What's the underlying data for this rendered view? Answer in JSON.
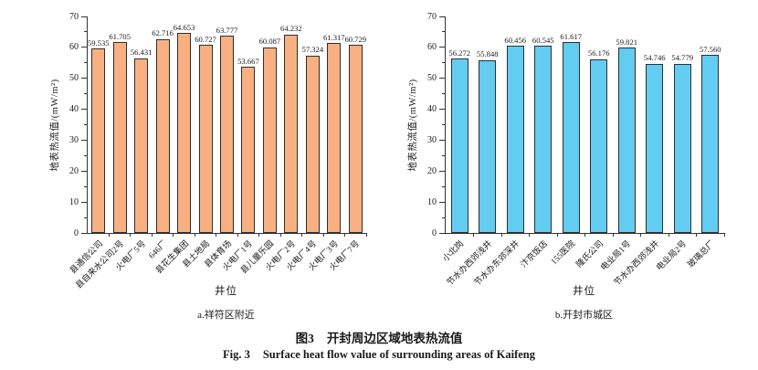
{
  "figure": {
    "caption_zh_label": "图3",
    "caption_zh_text": "开封周边区域地表热流值",
    "caption_en_label": "Fig. 3",
    "caption_en_text": "Surface heat flow value of surrounding areas of Kaifeng"
  },
  "chart_data": [
    {
      "type": "bar",
      "panel_label": "a.祥符区附近",
      "xlabel": "井位",
      "ylabel": "地表热流值/(mW/m²)",
      "ylim": [
        0,
        70
      ],
      "ytick_step": 10,
      "ytick_minor_step": 5,
      "grid": false,
      "legend": null,
      "bar_color": "#F8B083",
      "bar_border_color": "#2e2e2e",
      "categories": [
        "县通信公司",
        "县自来水公司2号",
        "火电厂5号",
        "646厂",
        "县花生集团",
        "县土地局",
        "县体育场",
        "火电厂1号",
        "县儿童乐园",
        "火电厂2号",
        "火电厂4号",
        "火电厂3号",
        "火电厂7号"
      ],
      "values": [
        59.535,
        61.705,
        56.431,
        62.716,
        64.653,
        60.727,
        63.777,
        53.667,
        60.087,
        64.232,
        57.324,
        61.317,
        60.729
      ]
    },
    {
      "type": "bar",
      "panel_label": "b.开封市城区",
      "xlabel": "井位",
      "ylabel": "地表热流值/(mW/m²)",
      "ylim": [
        0,
        70
      ],
      "ytick_step": 10,
      "ytick_minor_step": 5,
      "grid": false,
      "legend": null,
      "bar_color": "#63CCF1",
      "bar_border_color": "#2e2e2e",
      "categories": [
        "小北岗",
        "节水办西郊浅井",
        "节水办东郊深井",
        "汴京饭店",
        "155医院",
        "隆氏公司",
        "电业局1号",
        "节水办西郊浅井",
        "电业局2号",
        "玻璃总厂"
      ],
      "values": [
        56.272,
        55.848,
        60.456,
        60.545,
        61.617,
        56.176,
        59.821,
        54.746,
        54.779,
        57.56
      ]
    }
  ]
}
